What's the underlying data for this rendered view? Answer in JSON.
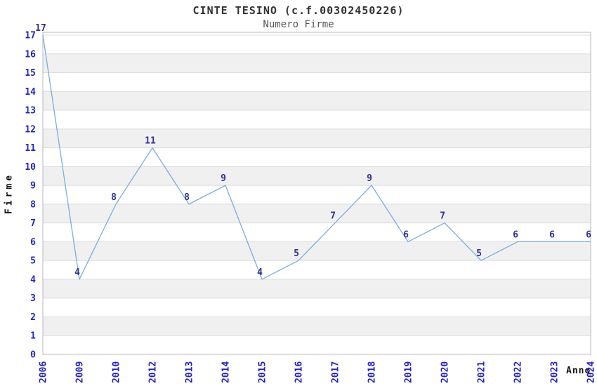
{
  "page": {
    "background": "#ffffff"
  },
  "chart_data": {
    "type": "line",
    "title": "CINTE TESINO (c.f.00302450226)",
    "subtitle": "Numero Firme",
    "xlabel": "Anno",
    "ylabel": "Firme",
    "categories": [
      "2006",
      "2009",
      "2010",
      "2012",
      "2013",
      "2014",
      "2015",
      "2016",
      "2017",
      "2018",
      "2019",
      "2020",
      "2021",
      "2022",
      "2023",
      "2024"
    ],
    "values": [
      17,
      4,
      8,
      11,
      8,
      9,
      4,
      5,
      7,
      9,
      6,
      7,
      5,
      6,
      6,
      6
    ],
    "ylim": [
      0,
      17
    ],
    "ytick_step": 1,
    "grid": "horizontal gridlines at every integer value",
    "background_bands": "alternating light-gray horizontal bands between odd and even y values",
    "legend": "none",
    "point_labels_visible": true,
    "x_tick_rotation_deg": -90,
    "colors": {
      "line": "#7aace2",
      "tick_labels": "#2222cc",
      "point_labels": "#30309a",
      "band": "#f0f0f0",
      "gridline": "#dcdcdc",
      "frame": "#b8b8b8",
      "title": "#333333",
      "subtitle": "#555555",
      "axis_labels": "#111111"
    }
  }
}
